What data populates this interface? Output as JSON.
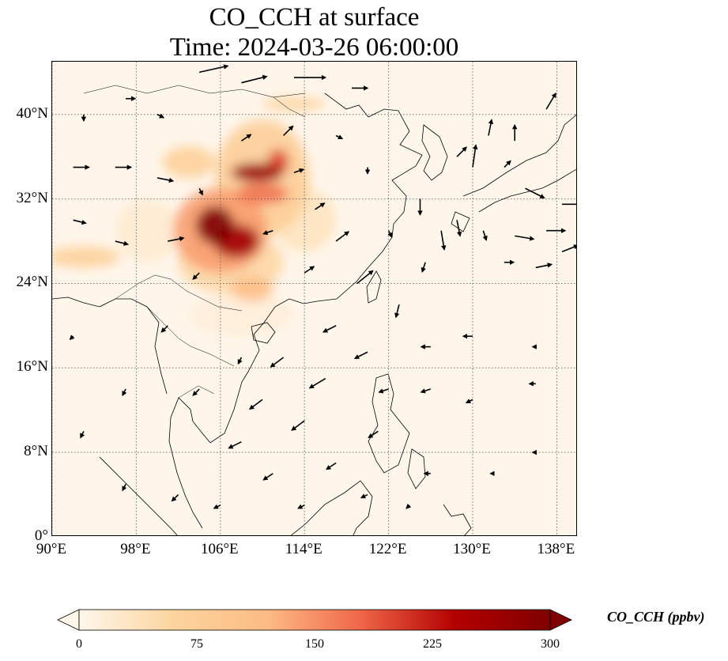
{
  "title": {
    "line1": "CO_CCH at surface",
    "line2": "Time: 2024-03-26 06:00:00"
  },
  "map": {
    "extent": {
      "lon": [
        90,
        140
      ],
      "lat": [
        0,
        45
      ]
    },
    "x_ticks": [
      {
        "value": 90,
        "label": "90°E"
      },
      {
        "value": 98,
        "label": "98°E"
      },
      {
        "value": 106,
        "label": "106°E"
      },
      {
        "value": 114,
        "label": "114°E"
      },
      {
        "value": 122,
        "label": "122°E"
      },
      {
        "value": 130,
        "label": "130°E"
      },
      {
        "value": 138,
        "label": "138°E"
      }
    ],
    "y_ticks": [
      {
        "value": 0,
        "label": "0°"
      },
      {
        "value": 8,
        "label": "8°N"
      },
      {
        "value": 16,
        "label": "16°N"
      },
      {
        "value": 24,
        "label": "24°N"
      },
      {
        "value": 32,
        "label": "32°N"
      },
      {
        "value": 40,
        "label": "40°N"
      }
    ],
    "gridlines": true,
    "background_color": "#fff6eb",
    "coastline_color": "#000000",
    "wind_vectors": true
  },
  "chart_data": {
    "type": "heatmap",
    "variable": "CO_CCH",
    "units": "ppbv",
    "level": "surface",
    "time": "2024-03-26 06:00:00",
    "colorbar": {
      "colormap": "OrRd",
      "range": [
        0,
        300
      ],
      "extend": "both",
      "ticks": [
        {
          "value": 0,
          "label": "0"
        },
        {
          "value": 75,
          "label": "75"
        },
        {
          "value": 150,
          "label": "150"
        },
        {
          "value": 225,
          "label": "225"
        },
        {
          "value": 300,
          "label": "300"
        }
      ],
      "label": "CO_CCH (ppbv)"
    },
    "concentration_blobs": [
      {
        "lon": 105.5,
        "lat": 29.5,
        "rlon": 1.8,
        "rlat": 1.8,
        "value": 300
      },
      {
        "lon": 107.5,
        "lat": 28.0,
        "rlon": 2.2,
        "rlat": 1.6,
        "value": 260
      },
      {
        "lon": 106.0,
        "lat": 29.0,
        "rlon": 4.5,
        "rlat": 4.0,
        "value": 140
      },
      {
        "lon": 109.5,
        "lat": 34.5,
        "rlon": 2.5,
        "rlat": 0.9,
        "value": 270
      },
      {
        "lon": 111.5,
        "lat": 35.5,
        "rlon": 1.0,
        "rlat": 1.2,
        "value": 200
      },
      {
        "lon": 110.0,
        "lat": 32.5,
        "rlon": 2.5,
        "rlat": 1.0,
        "value": 170
      },
      {
        "lon": 110.0,
        "lat": 34.0,
        "rlon": 4.5,
        "rlat": 5.5,
        "value": 75
      },
      {
        "lon": 109.0,
        "lat": 23.5,
        "rlon": 2.0,
        "rlat": 1.2,
        "value": 110
      },
      {
        "lon": 107.0,
        "lat": 26.0,
        "rlon": 5.0,
        "rlat": 3.0,
        "value": 55
      },
      {
        "lon": 103.0,
        "lat": 35.5,
        "rlon": 2.5,
        "rlat": 1.5,
        "value": 70
      },
      {
        "lon": 93.0,
        "lat": 26.5,
        "rlon": 3.5,
        "rlat": 1.0,
        "value": 70
      },
      {
        "lon": 113.0,
        "lat": 41.0,
        "rlon": 3.0,
        "rlat": 0.7,
        "value": 55
      },
      {
        "lon": 114.0,
        "lat": 30.0,
        "rlon": 3.0,
        "rlat": 3.0,
        "value": 35
      },
      {
        "lon": 99.0,
        "lat": 29.0,
        "rlon": 3.0,
        "rlat": 3.0,
        "value": 20
      },
      {
        "lon": 108.0,
        "lat": 21.0,
        "rlon": 5.0,
        "rlat": 2.0,
        "value": 15
      }
    ],
    "wind_vectors": [
      {
        "lon": 113.0,
        "lat": 43.5,
        "u": 10,
        "v": 0
      },
      {
        "lon": 104.0,
        "lat": 44.0,
        "u": 9,
        "v": 2
      },
      {
        "lon": 108.0,
        "lat": 43.0,
        "u": 8,
        "v": 2
      },
      {
        "lon": 97.0,
        "lat": 41.5,
        "u": 3,
        "v": 0
      },
      {
        "lon": 92.0,
        "lat": 35.0,
        "u": 5,
        "v": 0
      },
      {
        "lon": 96.0,
        "lat": 35.0,
        "u": 5,
        "v": 0
      },
      {
        "lon": 100.0,
        "lat": 34.0,
        "u": 5,
        "v": -1
      },
      {
        "lon": 92.0,
        "lat": 30.0,
        "u": 4,
        "v": -1
      },
      {
        "lon": 96.0,
        "lat": 28.0,
        "u": 4,
        "v": -1
      },
      {
        "lon": 101.0,
        "lat": 28.0,
        "u": 5,
        "v": 1
      },
      {
        "lon": 104.0,
        "lat": 33.0,
        "u": 1,
        "v": -2
      },
      {
        "lon": 108.0,
        "lat": 37.5,
        "u": 3,
        "v": 2
      },
      {
        "lon": 112.0,
        "lat": 38.0,
        "u": 3,
        "v": 3
      },
      {
        "lon": 113.0,
        "lat": 34.5,
        "u": 3,
        "v": 1
      },
      {
        "lon": 111.0,
        "lat": 29.0,
        "u": -3,
        "v": -1
      },
      {
        "lon": 115.0,
        "lat": 31.0,
        "u": 3,
        "v": 2
      },
      {
        "lon": 117.0,
        "lat": 28.0,
        "u": 4,
        "v": 3
      },
      {
        "lon": 114.0,
        "lat": 25.0,
        "u": 3,
        "v": 2
      },
      {
        "lon": 104.0,
        "lat": 25.0,
        "u": -2,
        "v": -2
      },
      {
        "lon": 119.0,
        "lat": 24.0,
        "u": 5,
        "v": 4
      },
      {
        "lon": 125.0,
        "lat": 32.0,
        "u": 0,
        "v": -5
      },
      {
        "lon": 127.0,
        "lat": 29.0,
        "u": 1,
        "v": -6
      },
      {
        "lon": 128.5,
        "lat": 30.0,
        "u": 1,
        "v": -5
      },
      {
        "lon": 131.0,
        "lat": 29.0,
        "u": 1,
        "v": -3
      },
      {
        "lon": 135.0,
        "lat": 33.0,
        "u": 6,
        "v": -3
      },
      {
        "lon": 138.5,
        "lat": 31.5,
        "u": 6,
        "v": 0
      },
      {
        "lon": 134.0,
        "lat": 28.5,
        "u": 6,
        "v": -1
      },
      {
        "lon": 137.0,
        "lat": 29.0,
        "u": 6,
        "v": 0
      },
      {
        "lon": 138.5,
        "lat": 27.0,
        "u": 5,
        "v": 2
      },
      {
        "lon": 136.0,
        "lat": 25.5,
        "u": 5,
        "v": 1
      },
      {
        "lon": 133.0,
        "lat": 26.0,
        "u": 3,
        "v": 0
      },
      {
        "lon": 130.0,
        "lat": 35.0,
        "u": 1,
        "v": 7
      },
      {
        "lon": 131.5,
        "lat": 38.0,
        "u": 1,
        "v": 5
      },
      {
        "lon": 134.0,
        "lat": 37.5,
        "u": 0,
        "v": 5
      },
      {
        "lon": 137.0,
        "lat": 40.5,
        "u": 3,
        "v": 5
      },
      {
        "lon": 128.5,
        "lat": 36.0,
        "u": 3,
        "v": 3
      },
      {
        "lon": 133.0,
        "lat": 35.0,
        "u": 2,
        "v": 2
      },
      {
        "lon": 123.0,
        "lat": 22.0,
        "u": -1,
        "v": -4
      },
      {
        "lon": 125.5,
        "lat": 26.0,
        "u": -1,
        "v": -3
      },
      {
        "lon": 117.0,
        "lat": 20.0,
        "u": -4,
        "v": -2
      },
      {
        "lon": 120.0,
        "lat": 17.5,
        "u": -4,
        "v": -2
      },
      {
        "lon": 112.0,
        "lat": 17.0,
        "u": -4,
        "v": -3
      },
      {
        "lon": 116.0,
        "lat": 15.0,
        "u": -5,
        "v": -3
      },
      {
        "lon": 110.0,
        "lat": 13.0,
        "u": -4,
        "v": -3
      },
      {
        "lon": 114.0,
        "lat": 11.0,
        "u": -4,
        "v": -3
      },
      {
        "lon": 108.0,
        "lat": 9.0,
        "u": -4,
        "v": -2
      },
      {
        "lon": 111.0,
        "lat": 6.0,
        "u": -3,
        "v": -2
      },
      {
        "lon": 117.0,
        "lat": 7.0,
        "u": -3,
        "v": -2
      },
      {
        "lon": 121.0,
        "lat": 10.0,
        "u": -3,
        "v": -2
      },
      {
        "lon": 126.0,
        "lat": 18.0,
        "u": -3,
        "v": 0
      },
      {
        "lon": 130.0,
        "lat": 19.0,
        "u": -3,
        "v": 0
      },
      {
        "lon": 126.0,
        "lat": 14.0,
        "u": -3,
        "v": -1
      },
      {
        "lon": 130.0,
        "lat": 13.0,
        "u": -2,
        "v": -1
      },
      {
        "lon": 136.0,
        "lat": 14.5,
        "u": -2,
        "v": 0
      },
      {
        "lon": 136.0,
        "lat": 18.0,
        "u": -1,
        "v": 0
      },
      {
        "lon": 101.0,
        "lat": 20.0,
        "u": -2,
        "v": -2
      },
      {
        "lon": 97.0,
        "lat": 14.0,
        "u": -1,
        "v": -2
      },
      {
        "lon": 93.0,
        "lat": 10.0,
        "u": -1,
        "v": -2
      },
      {
        "lon": 97.0,
        "lat": 5.0,
        "u": -1,
        "v": -2
      },
      {
        "lon": 102.0,
        "lat": 4.0,
        "u": -2,
        "v": -2
      },
      {
        "lon": 106.0,
        "lat": 3.0,
        "u": -2,
        "v": -1
      },
      {
        "lon": 114.0,
        "lat": 3.0,
        "u": -2,
        "v": -1
      },
      {
        "lon": 120.0,
        "lat": 4.0,
        "u": -2,
        "v": -1
      },
      {
        "lon": 126.0,
        "lat": 6.0,
        "u": -2,
        "v": 0
      },
      {
        "lon": 132.0,
        "lat": 6.0,
        "u": -1,
        "v": 0
      },
      {
        "lon": 136.0,
        "lat": 8.0,
        "u": -1,
        "v": 0
      },
      {
        "lon": 92.0,
        "lat": 19.0,
        "u": -1,
        "v": -1
      },
      {
        "lon": 93.0,
        "lat": 40.0,
        "u": 0,
        "v": -2
      },
      {
        "lon": 100.0,
        "lat": 40.0,
        "u": 2,
        "v": -1
      },
      {
        "lon": 118.5,
        "lat": 42.5,
        "u": 5,
        "v": 0
      },
      {
        "lon": 117.0,
        "lat": 38.0,
        "u": 2,
        "v": -1
      },
      {
        "lon": 120.0,
        "lat": 35.0,
        "u": 0,
        "v": -2
      },
      {
        "lon": 122.0,
        "lat": 29.0,
        "u": 1,
        "v": -2
      },
      {
        "lon": 104.0,
        "lat": 14.0,
        "u": -2,
        "v": -2
      },
      {
        "lon": 108.0,
        "lat": 17.0,
        "u": -1,
        "v": -2
      },
      {
        "lon": 122.0,
        "lat": 14.0,
        "u": -3,
        "v": -1
      },
      {
        "lon": 124.0,
        "lat": 3.0,
        "u": -1,
        "v": -1
      }
    ]
  }
}
